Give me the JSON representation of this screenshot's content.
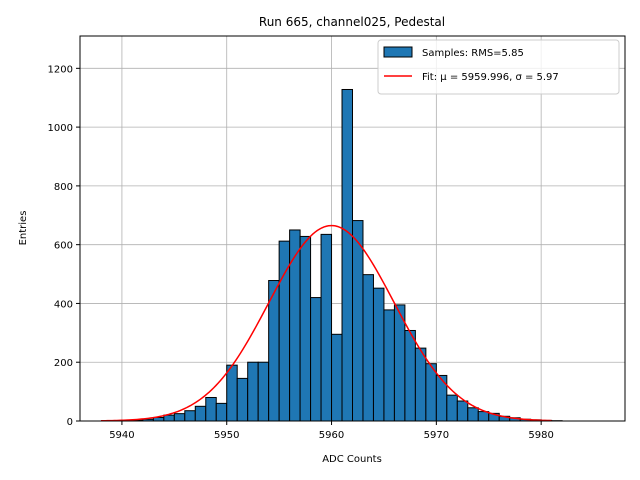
{
  "chart_data": {
    "type": "bar",
    "title": "Run 665, channel025, Pedestal",
    "xlabel": "ADC Counts",
    "ylabel": "Entries",
    "xlim": [
      5936,
      5988
    ],
    "ylim": [
      0,
      1310
    ],
    "grid": true,
    "xticks": [
      5940,
      5950,
      5960,
      5970,
      5980
    ],
    "yticks": [
      0,
      200,
      400,
      600,
      800,
      1000,
      1200
    ],
    "legend_position": "top-right",
    "histogram": {
      "name": "Samples: RMS=5.85",
      "bin_width": 1,
      "bin_starts": [
        5938,
        5939,
        5940,
        5941,
        5942,
        5943,
        5944,
        5945,
        5946,
        5947,
        5948,
        5949,
        5950,
        5951,
        5952,
        5953,
        5954,
        5955,
        5956,
        5957,
        5958,
        5959,
        5960,
        5961,
        5962,
        5963,
        5964,
        5965,
        5966,
        5967,
        5968,
        5969,
        5970,
        5971,
        5972,
        5973,
        5974,
        5975,
        5976,
        5977,
        5978,
        5979,
        5980,
        5981,
        5982,
        5983,
        5984,
        5985
      ],
      "values": [
        0,
        1,
        2,
        3,
        6,
        12,
        20,
        25,
        35,
        50,
        80,
        60,
        190,
        145,
        200,
        200,
        478,
        612,
        650,
        628,
        420,
        635,
        295,
        1128,
        682,
        498,
        452,
        378,
        395,
        308,
        248,
        195,
        155,
        88,
        68,
        45,
        32,
        26,
        16,
        11,
        6,
        4,
        2,
        1,
        0,
        0,
        0,
        0
      ],
      "color": "#1f77b4",
      "edgecolor": "#000000"
    },
    "fit": {
      "name": "Fit: μ = 5959.996, σ = 5.97",
      "type": "gaussian",
      "mu": 5959.996,
      "sigma": 5.97,
      "amplitude": 665,
      "x_range": [
        5938,
        5981
      ],
      "color": "#ff0000"
    }
  }
}
